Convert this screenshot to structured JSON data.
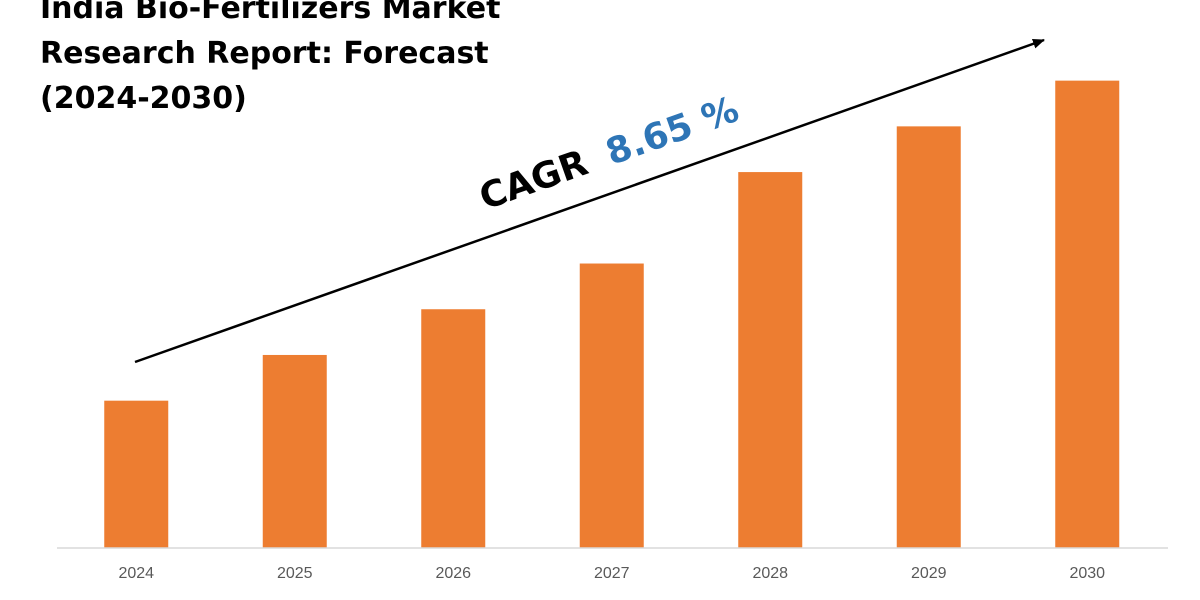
{
  "title_lines": [
    "India Bio-Fertilizers Market",
    "Research Report: Forecast",
    "(2024-2030)"
  ],
  "annotation": {
    "label": "CAGR",
    "value": "8.65 %"
  },
  "colors": {
    "bar": "#ED7D31",
    "cagr_value": "#2E75B6",
    "axis": "#D9D9D9",
    "tick_label": "#595959",
    "arrow": "#000000"
  },
  "chart_data": {
    "type": "bar",
    "categories": [
      "2024",
      "2025",
      "2026",
      "2027",
      "2028",
      "2029",
      "2030"
    ],
    "values": [
      29,
      38,
      47,
      56,
      74,
      83,
      92
    ],
    "ylim": [
      0,
      100
    ],
    "grid": false,
    "legend": "none"
  }
}
